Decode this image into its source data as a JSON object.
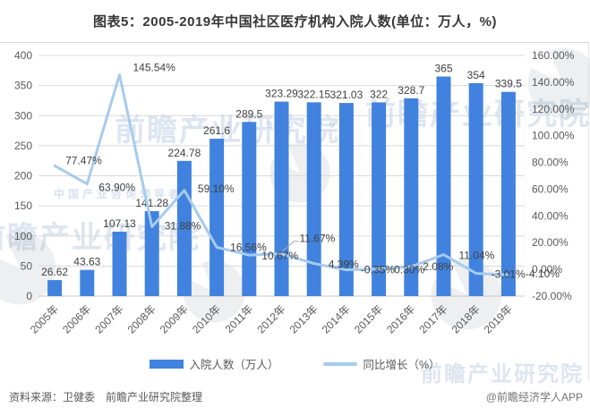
{
  "title": "图表5：2005-2019年中国社区医疗机构入院人数(单位：万人，%)",
  "chart_data": {
    "type": "bar+line combo",
    "categories": [
      "2005年",
      "2006年",
      "2007年",
      "2008年",
      "2009年",
      "2010年",
      "2011年",
      "2012年",
      "2013年",
      "2014年",
      "2015年",
      "2016年",
      "2017年",
      "2018年",
      "2019年"
    ],
    "series": [
      {
        "name": "入院人数（万人）",
        "type": "bar",
        "axis": "left",
        "color": "#4182DE",
        "values": [
          26.62,
          43.63,
          107.13,
          141.28,
          224.78,
          261.6,
          289.5,
          323.29,
          322.15,
          321.03,
          322,
          328.7,
          365,
          354,
          339.5
        ],
        "labels": [
          "26.62",
          "43.63",
          "107.13",
          "141.28",
          "224.78",
          "261.6",
          "289.5",
          "323.29",
          "322.15",
          "321.03",
          "322",
          "328.7",
          "365",
          "354",
          "339.5"
        ]
      },
      {
        "name": "同比增长（%）",
        "type": "line",
        "axis": "right",
        "color": "#A6CBEE",
        "values": [
          77.47,
          63.9,
          145.54,
          31.88,
          59.1,
          16.56,
          10.67,
          11.67,
          4.39,
          -0.35,
          0.3,
          2.08,
          11.04,
          -3.01,
          -4.1
        ],
        "labels": [
          "77.47%",
          "63.90%",
          "145.54%",
          "31.88%",
          "59.10%",
          "16.56%",
          "10.67%",
          "11.67%",
          "4.39%",
          "-0.35%",
          "0.30%",
          "2.08%",
          "11.04%",
          "-3.01%",
          "-4.10%"
        ]
      }
    ],
    "left_axis": {
      "min": 0,
      "max": 400,
      "step": 50,
      "ticks": [
        "0",
        "50",
        "100",
        "150",
        "200",
        "250",
        "300",
        "350",
        "400"
      ]
    },
    "right_axis": {
      "min": -20,
      "max": 160,
      "step": 20,
      "ticks": [
        "-20.00%",
        "0.00%",
        "20.00%",
        "40.00%",
        "60.00%",
        "80.00%",
        "100.00%",
        "120.00%",
        "140.00%",
        "160.00%"
      ]
    },
    "grid": true,
    "legend_position": "bottom",
    "grid_color": "#D9D9D9",
    "axis_text_color": "#595959",
    "label_text_color": "#404040"
  },
  "legend": {
    "items": [
      {
        "label": "入院人数（万人）",
        "swatch": "bar"
      },
      {
        "label": "同比增长（%）",
        "swatch": "line"
      }
    ]
  },
  "footer": {
    "source": "资料来源：卫健委　前瞻产业研究院整理",
    "credit": "@前瞻经济学人APP"
  },
  "watermark": {
    "text": "前瞻产业研究院",
    "subtext": "中国产业咨询领导者",
    "digits": "8 3 9 9 9 9",
    "logo": "qianzhan-logo"
  }
}
